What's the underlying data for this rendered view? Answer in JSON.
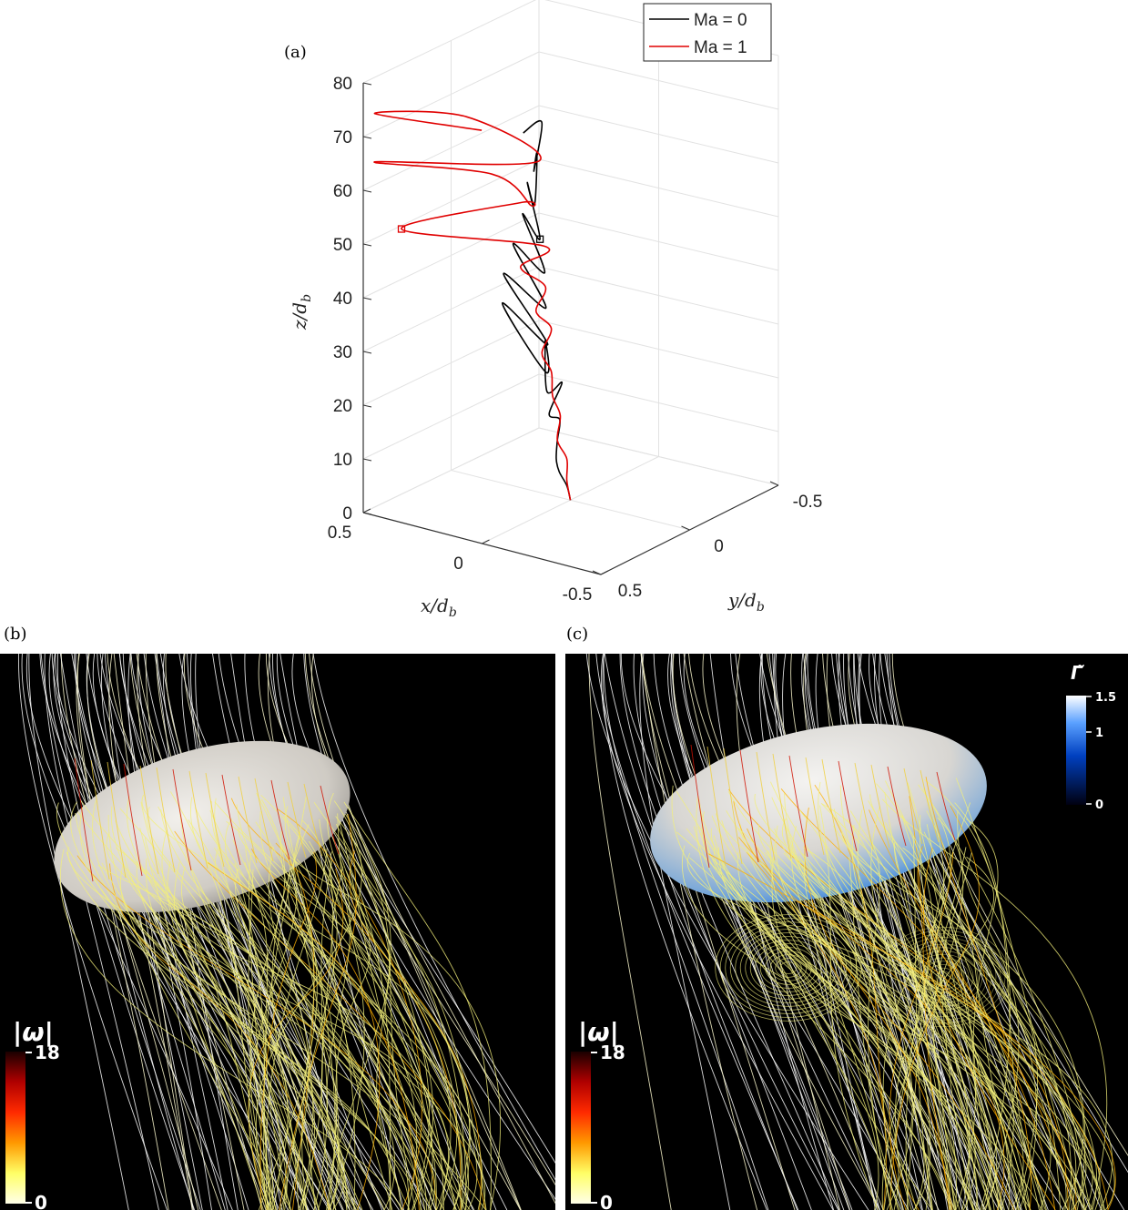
{
  "panels": {
    "a": "(a)",
    "b": "(b)",
    "c": "(c)"
  },
  "chart_data": {
    "type": "line",
    "projection": "3d",
    "title": "",
    "xlabel": "x/d_b",
    "ylabel": "y/d_b",
    "zlabel": "z/d_b",
    "xlim": [
      -0.5,
      0.5
    ],
    "ylim": [
      -0.5,
      0.5
    ],
    "zlim": [
      0,
      80
    ],
    "x_ticks": [
      "0.5",
      "0",
      "-0.5"
    ],
    "y_ticks": [
      "-0.5",
      "0",
      "0.5"
    ],
    "z_ticks": [
      "0",
      "10",
      "20",
      "30",
      "40",
      "50",
      "60",
      "70",
      "80"
    ],
    "grid": true,
    "legend_position": "top-right",
    "series": [
      {
        "name": "Ma = 0",
        "color": "#000000",
        "marker_at_z": 53,
        "points": [
          [
            0.0,
            0.0,
            0
          ],
          [
            0.0,
            -0.02,
            3
          ],
          [
            0.01,
            -0.05,
            6
          ],
          [
            0.0,
            -0.08,
            9
          ],
          [
            0.01,
            -0.06,
            12
          ],
          [
            0.03,
            -0.02,
            15
          ],
          [
            0.0,
            -0.12,
            18
          ],
          [
            0.05,
            0.02,
            21
          ],
          [
            -0.05,
            -0.2,
            24
          ],
          [
            0.15,
            0.06,
            27
          ],
          [
            -0.12,
            -0.3,
            30
          ],
          [
            0.3,
            0.02,
            33
          ],
          [
            -0.15,
            -0.33,
            36
          ],
          [
            0.28,
            0.0,
            39
          ],
          [
            -0.12,
            -0.3,
            42
          ],
          [
            0.24,
            0.0,
            45
          ],
          [
            -0.1,
            -0.28,
            48
          ],
          [
            0.2,
            0.0,
            51
          ],
          [
            -0.08,
            -0.28,
            54
          ],
          [
            0.18,
            0.0,
            57
          ],
          [
            -0.05,
            -0.27,
            60
          ],
          [
            0.14,
            0.0,
            63
          ],
          [
            -0.04,
            -0.26,
            66
          ],
          [
            0.12,
            0.0,
            69
          ],
          [
            0.02,
            -0.24,
            72
          ]
        ]
      },
      {
        "name": "Ma = 1",
        "color": "#e00000",
        "marker_at_z": 51,
        "points": [
          [
            0.0,
            0.0,
            0
          ],
          [
            0.0,
            -0.02,
            4
          ],
          [
            0.0,
            -0.02,
            8
          ],
          [
            0.01,
            -0.06,
            12
          ],
          [
            0.02,
            -0.03,
            16
          ],
          [
            0.03,
            -0.06,
            20
          ],
          [
            0.05,
            -0.04,
            24
          ],
          [
            0.06,
            -0.08,
            28
          ],
          [
            0.05,
            -0.04,
            32
          ],
          [
            0.07,
            -0.1,
            36
          ],
          [
            0.06,
            -0.06,
            40
          ],
          [
            0.12,
            -0.12,
            44
          ],
          [
            0.05,
            -0.08,
            48
          ],
          [
            0.45,
            -0.35,
            51
          ],
          [
            0.18,
            -0.04,
            54
          ],
          [
            0.08,
            -0.12,
            56
          ],
          [
            0.3,
            -0.04,
            58
          ],
          [
            0.6,
            -0.3,
            61
          ],
          [
            0.06,
            -0.1,
            64
          ],
          [
            0.42,
            -0.02,
            67
          ],
          [
            0.6,
            -0.3,
            70
          ],
          [
            0.15,
            -0.3,
            72
          ]
        ]
      }
    ]
  },
  "panel_b": {
    "colorbar_title": "|ω|",
    "colorbar_max": "18",
    "colorbar_min": "0",
    "colors": [
      "#1a0000",
      "#b00000",
      "#ff2a00",
      "#ff9900",
      "#ffff66",
      "#ffffe8"
    ]
  },
  "panel_c": {
    "colorbar_title": "|ω|",
    "colorbar_max": "18",
    "colorbar_min": "0",
    "gamma_title": "Γ̃",
    "gamma_max": "1.5",
    "gamma_mid": "1",
    "gamma_min": "0",
    "gamma_colors": [
      "#000010",
      "#0040c0",
      "#5aa0ff",
      "#ffffff"
    ]
  }
}
